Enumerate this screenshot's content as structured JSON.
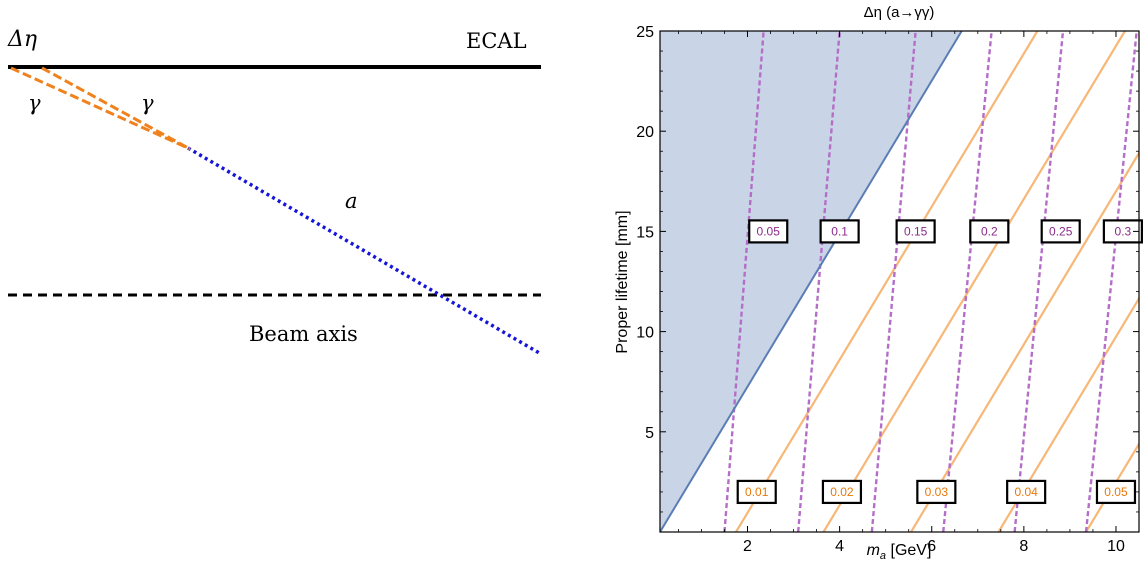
{
  "diagram": {
    "delta_eta_label": "Δη",
    "ecal_label": "ECAL",
    "gamma_label_1": "γ",
    "gamma_label_2": "γ",
    "axion_label": "a",
    "beam_axis_label": "Beam axis",
    "colors": {
      "ecal_line": "#000000",
      "photon": "#f0821e",
      "axion": "#1515d8",
      "beam_axis": "#000000"
    }
  },
  "chart_data": {
    "type": "line",
    "title": "Δη (a→γγ)",
    "xlabel": "m",
    "xlabel_sub": "a",
    "xlabel_unit": " [GeV]",
    "ylabel": "Proper lifetime [mm]",
    "xlim": [
      0.1,
      10.5
    ],
    "ylim": [
      0,
      25
    ],
    "x_ticks": [
      2,
      4,
      6,
      8,
      10
    ],
    "y_ticks": [
      5,
      10,
      15,
      20,
      25
    ],
    "x_tick_labels": [
      "2",
      "4",
      "6",
      "8",
      "10"
    ],
    "y_tick_labels": [
      "5",
      "10",
      "15",
      "20",
      "25"
    ],
    "shaded_region": {
      "boundary": [
        [
          0.1,
          0
        ],
        [
          6.65,
          25
        ]
      ],
      "color": "#c9d4e6",
      "edge_color": "#5a7db5"
    },
    "solid_contours": {
      "color": "#f7b777",
      "slope": 3.82,
      "labels": [
        {
          "label": "0.01",
          "x": 2.2,
          "y": 2.0
        },
        {
          "label": "0.02",
          "x": 4.05,
          "y": 2.0
        },
        {
          "label": "0.03",
          "x": 6.1,
          "y": 2.0
        },
        {
          "label": "0.04",
          "x": 8.05,
          "y": 2.0
        },
        {
          "label": "0.05",
          "x": 10.0,
          "y": 2.0
        }
      ],
      "x_intercepts": [
        1.75,
        3.65,
        5.55,
        7.45,
        9.35
      ]
    },
    "dashed_contours": {
      "color": "#b46ec8",
      "label_color": "#8a2a8a",
      "series": [
        {
          "label": "0.05",
          "x_at_0": 1.5,
          "x_at_25": 2.35
        },
        {
          "label": "0.1",
          "x_at_0": 3.1,
          "x_at_25": 4.0
        },
        {
          "label": "0.15",
          "x_at_0": 4.7,
          "x_at_25": 5.65
        },
        {
          "label": "0.2",
          "x_at_0": 6.25,
          "x_at_25": 7.3
        },
        {
          "label": "0.25",
          "x_at_0": 7.8,
          "x_at_25": 8.85
        },
        {
          "label": "0.3",
          "x_at_0": 9.35,
          "x_at_25": 10.45
        }
      ],
      "labels": [
        {
          "label": "0.05",
          "x": 2.45,
          "y": 15.0
        },
        {
          "label": "0.1",
          "x": 4.0,
          "y": 15.0
        },
        {
          "label": "0.15",
          "x": 5.65,
          "y": 15.0
        },
        {
          "label": "0.2",
          "x": 7.25,
          "y": 15.0
        },
        {
          "label": "0.25",
          "x": 8.8,
          "y": 15.0
        },
        {
          "label": "0.3",
          "x": 10.15,
          "y": 15.0
        }
      ]
    },
    "grid": false
  }
}
